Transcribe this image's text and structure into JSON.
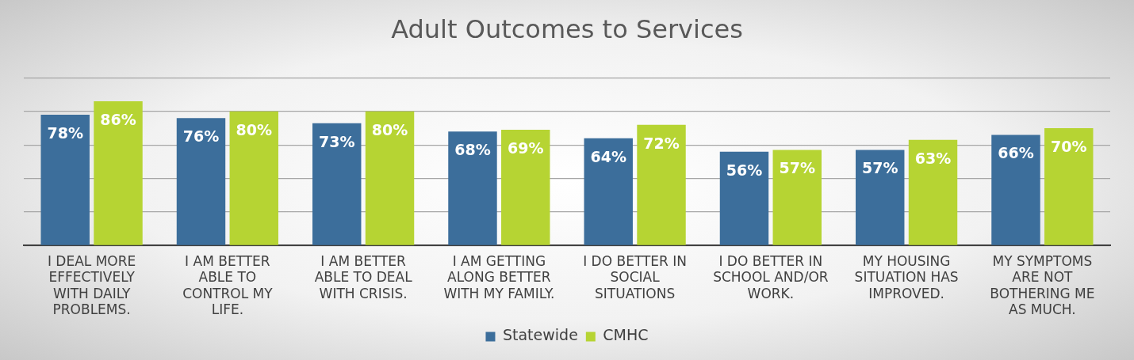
{
  "chart_data": {
    "type": "bar",
    "title": "Adult Outcomes to Services",
    "categories": [
      "I DEAL MORE EFFECTIVELY WITH DAILY PROBLEMS.",
      "I AM BETTER ABLE TO CONTROL MY LIFE.",
      "I AM BETTER ABLE TO DEAL WITH CRISIS.",
      "I AM GETTING ALONG BETTER WITH MY FAMILY.",
      "I DO BETTER IN SOCIAL SITUATIONS",
      "I DO BETTER IN SCHOOL AND/OR WORK.",
      "MY HOUSING SITUATION HAS IMPROVED.",
      "MY SYMPTOMS ARE NOT BOTHERING ME AS MUCH."
    ],
    "series": [
      {
        "name": "Statewide",
        "color": "#3c6e9b",
        "values": [
          78,
          76,
          73,
          68,
          64,
          56,
          57,
          66
        ],
        "value_labels": [
          "78%",
          "76%",
          "73%",
          "68%",
          "64%",
          "56%",
          "57%",
          "66%"
        ]
      },
      {
        "name": "CMHC",
        "color": "#b6d433",
        "values": [
          86,
          80,
          80,
          69,
          72,
          57,
          63,
          70
        ],
        "value_labels": [
          "86%",
          "80%",
          "80%",
          "69%",
          "72%",
          "57%",
          "63%",
          "70%"
        ]
      }
    ],
    "tick_labels": "x",
    "grid": "y",
    "legend": "bottom"
  }
}
